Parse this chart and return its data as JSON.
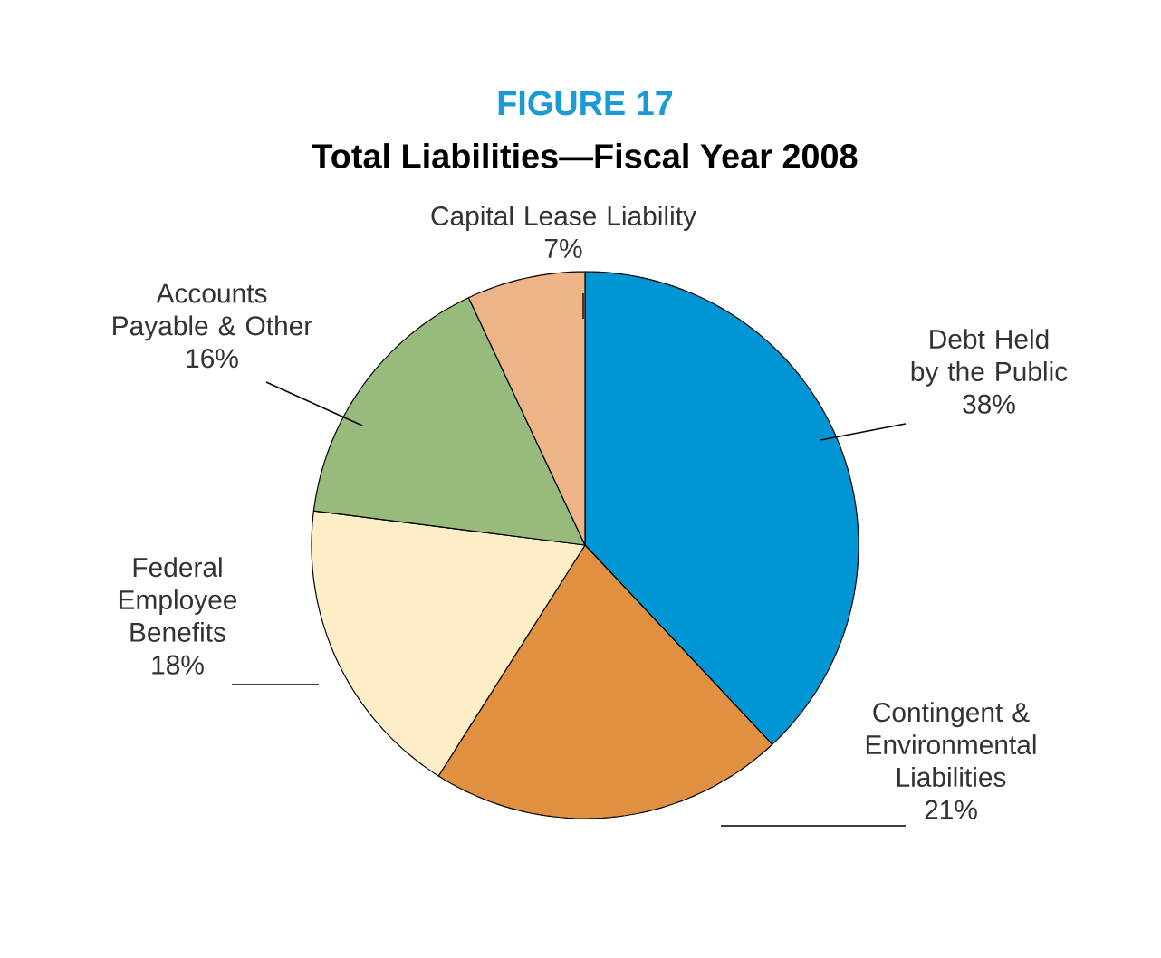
{
  "chart_data": {
    "type": "pie",
    "title": "FIGURE 17",
    "subtitle": "Total Liabilities—Fiscal Year 2008",
    "categories": [
      "Debt Held by the Public",
      "Contingent & Environmental Liabilities",
      "Federal Employee Benefits",
      "Accounts Payable & Other",
      "Capital Lease Liability"
    ],
    "values": [
      38,
      21,
      18,
      16,
      7
    ],
    "value_labels": [
      "38%",
      "21%",
      "18%",
      "16%",
      "7%"
    ],
    "colors": [
      "#0096d6",
      "#e09040",
      "#fdeec8",
      "#96bb7c",
      "#edb587"
    ]
  }
}
